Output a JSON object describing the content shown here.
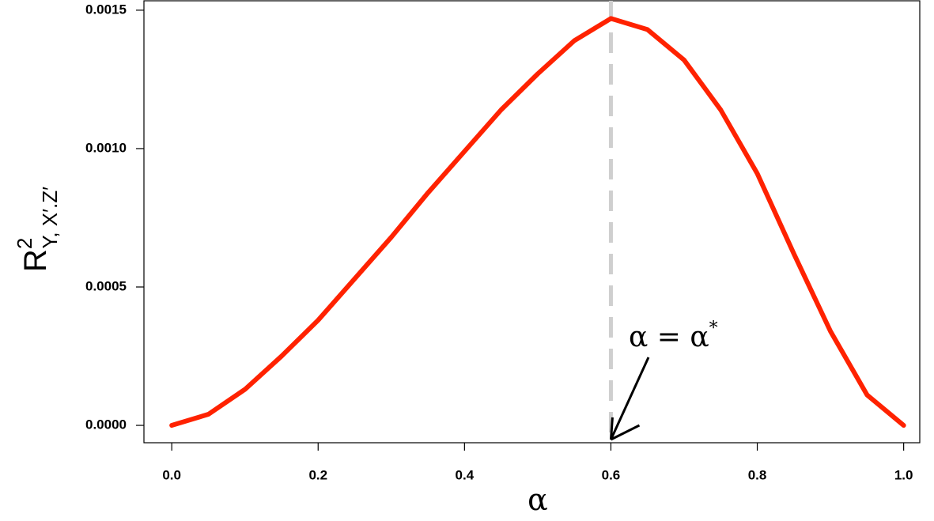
{
  "chart_data": {
    "type": "line",
    "x_label": "α",
    "y_label": {
      "base": "R",
      "superscript": "2",
      "subscript": "Y, X′.Z′"
    },
    "annotation": {
      "text": "α = α",
      "superscript": "*",
      "x": 0.6
    },
    "vline": 0.6,
    "xlim": [
      -0.038,
      1.022
    ],
    "ylim": [
      -6.27e-05,
      0.001534
    ],
    "xticks": [
      {
        "value": 0,
        "label": "0.0"
      },
      {
        "value": 0.2,
        "label": "0.2"
      },
      {
        "value": 0.4,
        "label": "0.4"
      },
      {
        "value": 0.6,
        "label": "0.6"
      },
      {
        "value": 0.8,
        "label": "0.8"
      },
      {
        "value": 1,
        "label": "1.0"
      }
    ],
    "yticks": [
      {
        "value": 0,
        "label": "0.0000"
      },
      {
        "value": 0.0005,
        "label": "0.0005"
      },
      {
        "value": 0.001,
        "label": "0.0010"
      },
      {
        "value": 0.0015,
        "label": "0.0015"
      }
    ],
    "x": [
      0,
      0.05,
      0.1,
      0.15,
      0.2,
      0.25,
      0.3,
      0.35,
      0.4,
      0.45,
      0.5,
      0.55,
      0.6,
      0.65,
      0.7,
      0.75,
      0.8,
      0.85,
      0.9,
      0.95,
      1.0
    ],
    "series": [
      {
        "color": "#ff2200",
        "values": [
          0,
          4e-05,
          0.00013,
          0.00025,
          0.00038,
          0.00053,
          0.00068,
          0.00084,
          0.00099,
          0.00114,
          0.00127,
          0.00139,
          0.00147,
          0.00143,
          0.00132,
          0.00114,
          0.00091,
          0.00062,
          0.00034,
          0.00011,
          0
        ]
      }
    ]
  }
}
